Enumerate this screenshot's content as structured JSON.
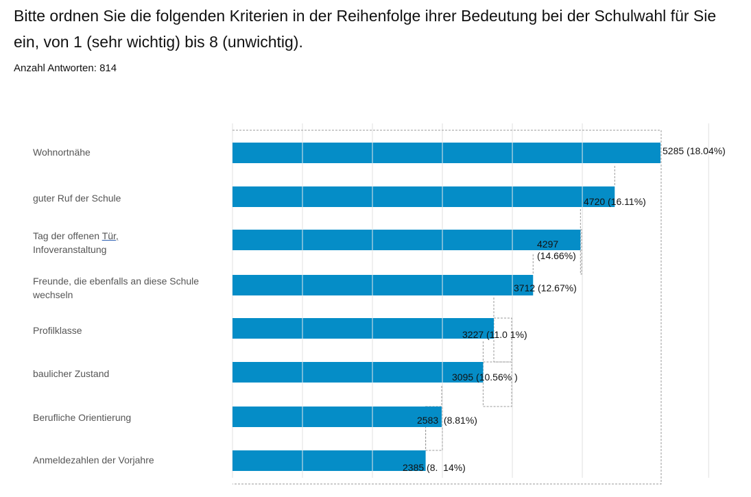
{
  "header": {
    "question": "Bitte ordnen Sie die folgenden Kriterien in der Reihenfolge ihrer Bedeutung bei der Schulwahl für Sie ein, von 1 (sehr wichtig) bis 8 (unwichtig).",
    "responses_label": "Anzahl Antworten: 814"
  },
  "colors": {
    "bar": "#058DC7",
    "grid": "#e0e0e0",
    "dashed": "#999999"
  },
  "chart_data": {
    "type": "bar",
    "orientation": "horizontal",
    "title": "Bitte ordnen Sie die folgenden Kriterien in der Reihenfolge ihrer Bedeutung bei der Schulwahl für Sie ein, von 1 (sehr wichtig) bis 8 (unwichtig).",
    "xlabel": "",
    "ylabel": "",
    "xlim": [
      0,
      5880
    ],
    "grid": true,
    "gridlines": [
      0,
      864,
      1728,
      2592,
      3456,
      4320,
      5880
    ],
    "categories": [
      "Wohnortnähe",
      "guter Ruf der Schule",
      "Tag der offenen Tür, Infoveranstaltung",
      "Freunde, die ebenfalls an diese Schule wechseln",
      "Profilklasse",
      "baulicher Zustand",
      "Berufliche Orientierung",
      "Anmeldezahlen der Vorjahre"
    ],
    "values": [
      5285,
      4720,
      4297,
      3712,
      3227,
      3095,
      2583,
      2385
    ],
    "percentages": [
      "18.04%",
      "16.11%",
      "14.66%",
      "12.67%",
      "11.01%",
      "10.56%",
      "8.81%",
      "8.14%"
    ],
    "data_labels": [
      "5285 (18.04%)",
      "4720 (16.11%)",
      "4297 (14.66%)",
      "3712 (12.67%)",
      "3227 (11.0 1%)",
      "3095 (10.56% )",
      "2583  (8.81%)",
      "2385 (8.  14%)"
    ]
  },
  "labels": {
    "c0": "Wohnortnähe",
    "c1": "guter Ruf der Schule",
    "c2a": "Tag der offenen ",
    "c2link": "Tür, ",
    "c2b": "Infoveranstaltung",
    "c3a": "Freunde, die ebenfalls an diese Schule",
    "c3b": "wechseln",
    "c4": "Profilklasse",
    "c5": "baulicher Zustand",
    "c6": "Berufliche Orientierung",
    "c7": "Anmeldezahlen der Vorjahre",
    "v2a": "4297",
    "v2b": "(14.66%)"
  }
}
